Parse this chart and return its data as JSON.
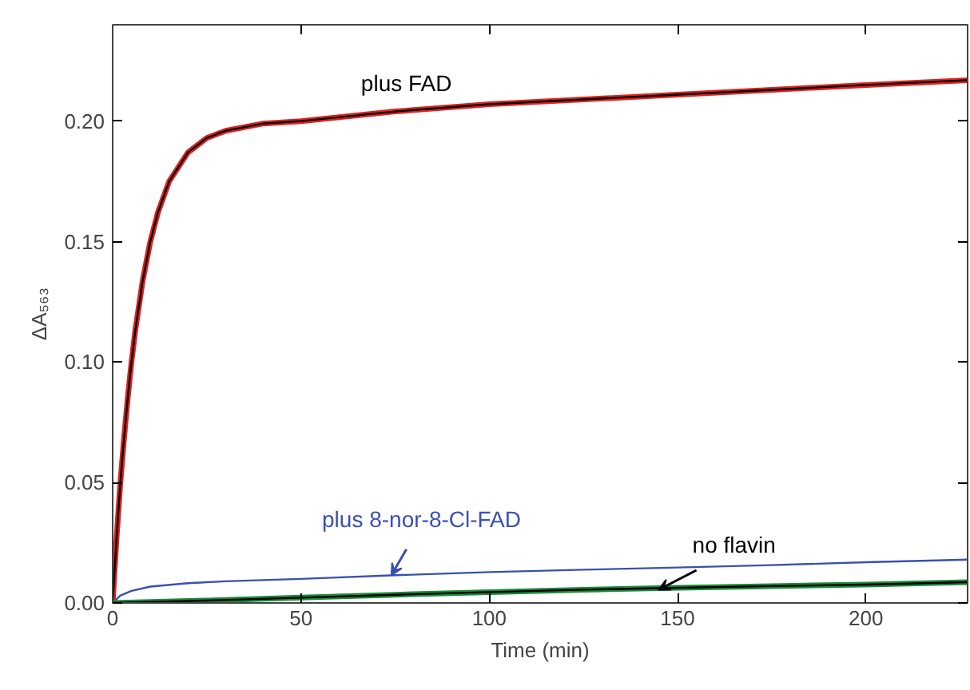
{
  "chart_data": {
    "type": "line",
    "xlabel": "Time (min)",
    "ylabel": "ΔA₅₆₃",
    "xlim": [
      0,
      227
    ],
    "ylim": [
      0,
      0.24
    ],
    "xticks": [
      0,
      50,
      100,
      150,
      200
    ],
    "yticks": [
      {
        "value": 0,
        "label": "0.00"
      },
      {
        "value": 0.05,
        "label": "0.05"
      },
      {
        "value": 0.1,
        "label": "0.10"
      },
      {
        "value": 0.15,
        "label": "0.15"
      },
      {
        "value": 0.2,
        "label": "0.20"
      }
    ],
    "grid": false,
    "marker": "none",
    "line_style": "solid",
    "series": [
      {
        "color": "#e02020",
        "x": [
          0,
          1,
          2,
          3,
          4,
          5,
          6,
          8,
          10,
          12,
          15,
          20,
          25,
          30,
          40,
          50,
          75,
          100,
          125,
          150,
          175,
          200,
          227
        ],
        "values": [
          0,
          0.026,
          0.049,
          0.068,
          0.085,
          0.1,
          0.113,
          0.134,
          0.15,
          0.162,
          0.175,
          0.187,
          0.193,
          0.196,
          0.199,
          0.2,
          0.204,
          0.207,
          0.209,
          0.211,
          0.213,
          0.215,
          0.217
        ]
      },
      {
        "color": "#000000",
        "x": [
          0,
          1,
          2,
          3,
          4,
          5,
          6,
          8,
          10,
          12,
          15,
          20,
          25,
          30,
          40,
          50,
          75,
          100,
          125,
          150,
          175,
          200,
          227
        ],
        "values": [
          0,
          0.026,
          0.049,
          0.068,
          0.085,
          0.1,
          0.113,
          0.134,
          0.15,
          0.162,
          0.175,
          0.187,
          0.193,
          0.196,
          0.199,
          0.2,
          0.204,
          0.207,
          0.209,
          0.211,
          0.213,
          0.215,
          0.217
        ]
      },
      {
        "color": "#3a50b0",
        "x": [
          0,
          2,
          5,
          10,
          20,
          30,
          50,
          75,
          100,
          125,
          150,
          175,
          200,
          227
        ],
        "values": [
          0,
          0.003,
          0.005,
          0.0068,
          0.0082,
          0.009,
          0.01,
          0.0115,
          0.0128,
          0.0138,
          0.0147,
          0.0157,
          0.0169,
          0.018
        ]
      },
      {
        "color": "#1a8a3a",
        "x": [
          0,
          25,
          50,
          75,
          100,
          125,
          150,
          175,
          200,
          227
        ],
        "values": [
          0,
          0.001,
          0.0022,
          0.0034,
          0.0045,
          0.0055,
          0.0063,
          0.007,
          0.0076,
          0.0086
        ]
      },
      {
        "color": "#000000",
        "x": [
          0,
          25,
          50,
          75,
          100,
          125,
          150,
          175,
          200,
          227
        ],
        "values": [
          0,
          0.001,
          0.0022,
          0.0034,
          0.0045,
          0.0055,
          0.0063,
          0.007,
          0.0076,
          0.0086
        ]
      }
    ],
    "annotations": [
      {
        "text": "plus FAD",
        "x": 78,
        "y": 0.204
      },
      {
        "text": "plus 8-nor-8-Cl-FAD",
        "x": 74,
        "y": 0.0115
      },
      {
        "text": "no flavin",
        "x": 145,
        "y": 0.0055
      }
    ]
  }
}
